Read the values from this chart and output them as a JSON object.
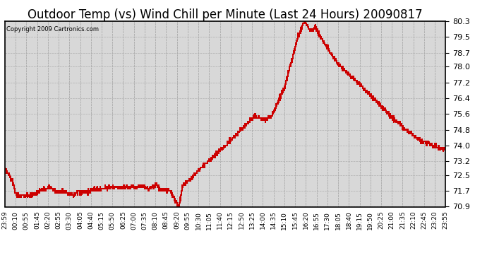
{
  "title": "Outdoor Temp (vs) Wind Chill per Minute (Last 24 Hours) 20090817",
  "copyright_text": "Copyright 2009 Cartronics.com",
  "line_color": "#cc0000",
  "background_color": "#ffffff",
  "plot_bg_color": "#d8d8d8",
  "grid_color": "#aaaaaa",
  "title_fontsize": 12,
  "yticks": [
    70.9,
    71.7,
    72.5,
    73.2,
    74.0,
    74.8,
    75.6,
    76.4,
    77.2,
    78.0,
    78.7,
    79.5,
    80.3
  ],
  "ylim": [
    70.9,
    80.3
  ],
  "xtick_labels": [
    "23:59",
    "00:10",
    "00:55",
    "01:45",
    "02:20",
    "02:55",
    "03:30",
    "04:05",
    "04:40",
    "05:15",
    "05:50",
    "06:25",
    "07:00",
    "07:35",
    "08:10",
    "08:45",
    "09:20",
    "09:55",
    "10:30",
    "11:05",
    "11:40",
    "12:15",
    "12:50",
    "13:25",
    "14:00",
    "14:35",
    "15:10",
    "15:45",
    "16:20",
    "16:55",
    "17:30",
    "18:05",
    "18:40",
    "19:15",
    "19:50",
    "20:25",
    "21:00",
    "21:35",
    "22:10",
    "22:45",
    "23:20",
    "23:55"
  ],
  "n_points": 1440
}
